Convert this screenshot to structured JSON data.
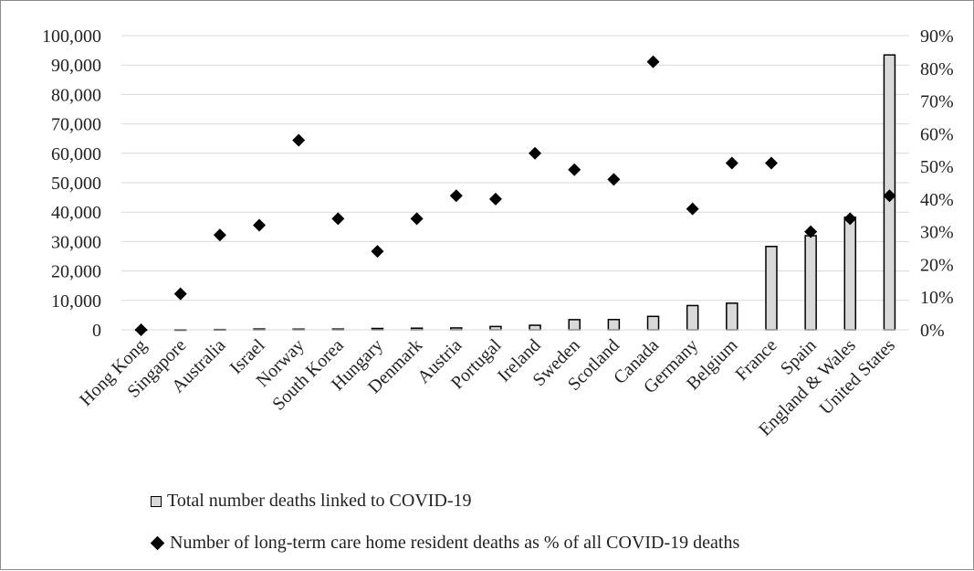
{
  "chart_data": {
    "type": "bar",
    "categories": [
      "Hong Kong",
      "Singapore",
      "Australia",
      "Israel",
      "Norway",
      "South Korea",
      "Hungary",
      "Denmark",
      "Austria",
      "Portugal",
      "Ireland",
      "Sweden",
      "Scotland",
      "Canada",
      "Germany",
      "Belgium",
      "France",
      "Spain",
      "England & Wales",
      "United States"
    ],
    "series": [
      {
        "name": "Total number deaths linked to COVID-19",
        "kind": "bar",
        "axis": "left",
        "color": "#d9d9d9",
        "values": [
          4,
          23,
          102,
          280,
          235,
          263,
          460,
          554,
          640,
          1126,
          1547,
          3460,
          3486,
          4562,
          8248,
          9052,
          28330,
          31973,
          38289,
          93439
        ]
      },
      {
        "name": "Number of long-term care home resident deaths as % of all COVID-19 deaths",
        "kind": "scatter",
        "marker": "diamond",
        "axis": "right",
        "color": "#000000",
        "values": [
          0,
          11,
          29,
          32,
          58,
          34,
          24,
          34,
          41,
          40,
          54,
          49,
          46,
          82,
          37,
          51,
          51,
          30,
          34,
          41
        ]
      }
    ],
    "y_left": {
      "ylim": [
        0,
        100000
      ],
      "ticks": [
        "0",
        "10,000",
        "20,000",
        "30,000",
        "40,000",
        "50,000",
        "60,000",
        "70,000",
        "80,000",
        "90,000",
        "100,000"
      ]
    },
    "y_right": {
      "ylim": [
        0,
        90
      ],
      "ticks": [
        "0%",
        "10%",
        "20%",
        "30%",
        "40%",
        "50%",
        "60%",
        "70%",
        "80%",
        "90%"
      ]
    },
    "grid": true,
    "legend_position": "bottom"
  },
  "legend": {
    "bar_label": "Total number deaths linked to COVID-19",
    "marker_label": "Number of long-term care home resident deaths as % of all COVID-19 deaths"
  }
}
